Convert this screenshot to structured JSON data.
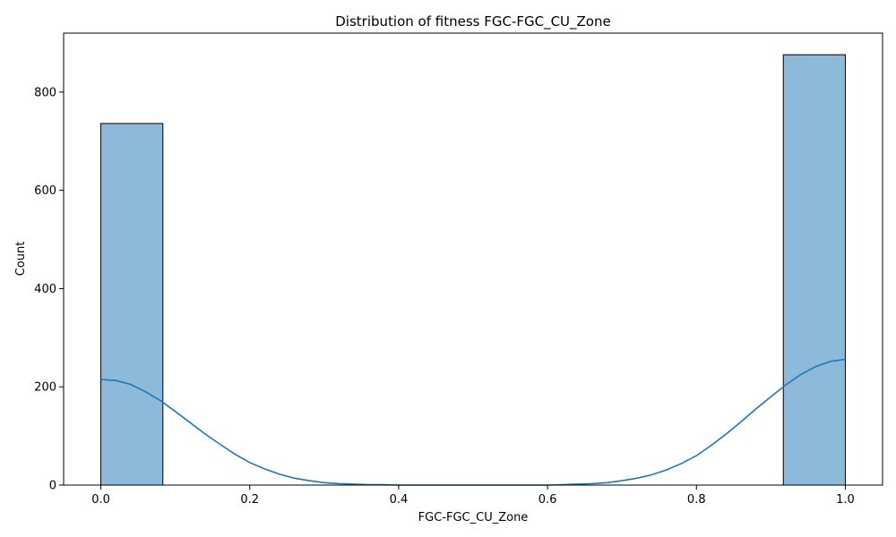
{
  "chart_data": {
    "type": "bar",
    "title": "Distribution of fitness FGC-FGC_CU_Zone",
    "xlabel": "FGC-FGC_CU_Zone",
    "ylabel": "Count",
    "xlim": [
      -0.05,
      1.05
    ],
    "ylim": [
      0,
      920
    ],
    "x_ticks": [
      0.0,
      0.2,
      0.4,
      0.6,
      0.8,
      1.0
    ],
    "x_tick_labels": [
      "0.0",
      "0.2",
      "0.4",
      "0.6",
      "0.8",
      "1.0"
    ],
    "y_ticks": [
      0,
      200,
      400,
      600,
      800
    ],
    "y_tick_labels": [
      "0",
      "200",
      "400",
      "600",
      "800"
    ],
    "bins": [
      {
        "x0": 0.0,
        "x1": 0.0833,
        "count": 736
      },
      {
        "x0": 0.0833,
        "x1": 0.1667,
        "count": 0
      },
      {
        "x0": 0.1667,
        "x1": 0.25,
        "count": 0
      },
      {
        "x0": 0.25,
        "x1": 0.3333,
        "count": 0
      },
      {
        "x0": 0.3333,
        "x1": 0.4167,
        "count": 0
      },
      {
        "x0": 0.4167,
        "x1": 0.5,
        "count": 0
      },
      {
        "x0": 0.5,
        "x1": 0.5833,
        "count": 0
      },
      {
        "x0": 0.5833,
        "x1": 0.6667,
        "count": 0
      },
      {
        "x0": 0.6667,
        "x1": 0.75,
        "count": 0
      },
      {
        "x0": 0.75,
        "x1": 0.8333,
        "count": 0
      },
      {
        "x0": 0.8333,
        "x1": 0.9167,
        "count": 0
      },
      {
        "x0": 0.9167,
        "x1": 1.0,
        "count": 876
      }
    ],
    "kde": {
      "x": [
        0.0,
        0.02,
        0.04,
        0.06,
        0.08,
        0.1,
        0.12,
        0.14,
        0.16,
        0.18,
        0.2,
        0.22,
        0.24,
        0.26,
        0.28,
        0.3,
        0.32,
        0.34,
        0.36,
        0.38,
        0.4,
        0.45,
        0.5,
        0.55,
        0.6,
        0.62,
        0.64,
        0.66,
        0.68,
        0.7,
        0.72,
        0.74,
        0.76,
        0.78,
        0.8,
        0.82,
        0.84,
        0.86,
        0.88,
        0.9,
        0.92,
        0.94,
        0.96,
        0.98,
        1.0
      ],
      "y": [
        215,
        213,
        205,
        190,
        172,
        150,
        127,
        104,
        83,
        63,
        46,
        33,
        22,
        14,
        9,
        5,
        3,
        2,
        1,
        1,
        0,
        0,
        0,
        0,
        0,
        1,
        2,
        3,
        5,
        9,
        14,
        21,
        31,
        44,
        60,
        81,
        104,
        129,
        155,
        180,
        204,
        225,
        241,
        252,
        256
      ]
    },
    "grid": false,
    "colors": {
      "bar_fill": "#8dbadb",
      "bar_edge": "#000000",
      "kde_line": "#1f77b4",
      "axes": "#000000"
    }
  }
}
